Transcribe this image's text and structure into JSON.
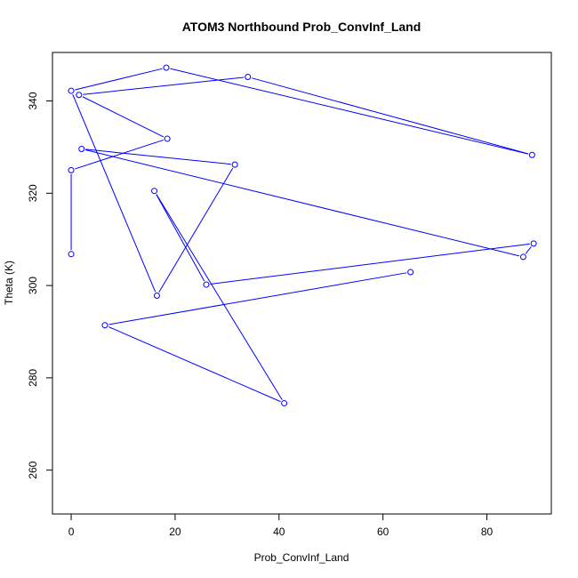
{
  "chart_data": {
    "type": "line",
    "title": "ATOM3 Northbound Prob_ConvInf_Land",
    "xlabel": "Prob_ConvInf_Land",
    "ylabel": "Theta (K)",
    "xlim": [
      -3.6,
      92.4
    ],
    "ylim": [
      250.5,
      350.5
    ],
    "xticks": [
      0,
      20,
      40,
      60,
      80
    ],
    "yticks": [
      260,
      280,
      300,
      320,
      340
    ],
    "grid": false,
    "marker": "open-circle",
    "color": "#0000ff",
    "series": [
      {
        "points": [
          [
            0.0,
            306.8
          ],
          [
            0.0,
            325.0
          ],
          [
            18.5,
            331.8
          ],
          [
            1.5,
            341.3
          ],
          [
            34.0,
            345.2
          ],
          [
            88.7,
            328.3
          ],
          [
            18.3,
            347.2
          ],
          [
            0.0,
            342.2
          ],
          [
            16.5,
            297.8
          ],
          [
            31.5,
            326.2
          ],
          [
            2.0,
            329.6
          ],
          [
            87.0,
            306.2
          ],
          [
            89.0,
            309.1
          ],
          [
            26.0,
            300.2
          ],
          [
            16.0,
            320.5
          ],
          [
            41.0,
            274.5
          ],
          [
            6.5,
            291.4
          ],
          [
            65.3,
            302.9
          ]
        ]
      }
    ]
  }
}
